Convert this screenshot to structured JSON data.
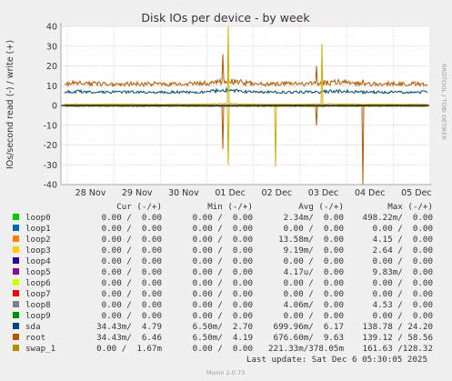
{
  "chart_data": {
    "type": "line",
    "title": "Disk IOs per device - by week",
    "ylabel": "IOs/second read (-) / write (+)",
    "side_label": "RRDTOOL / TOBI OETIKER",
    "ylim": [
      -40,
      40
    ],
    "yticks": [
      40,
      30,
      20,
      10,
      0,
      -10,
      -20,
      -30,
      -40
    ],
    "xticks": [
      "28 Nov",
      "29 Nov",
      "30 Nov",
      "01 Dec",
      "02 Dec",
      "03 Dec",
      "04 Dec",
      "05 Dec"
    ],
    "grid": true,
    "approx_series": [
      {
        "name": "root",
        "color": "#b35a00",
        "write_level_range": [
          8,
          13
        ],
        "peaks": [
          {
            "x": "01 Dec",
            "write": 26,
            "read": -22
          },
          {
            "x": "03 Dec",
            "write": 20,
            "read": -10
          },
          {
            "x": "04 Dec",
            "write": 13,
            "read": -40
          }
        ]
      },
      {
        "name": "sda",
        "color": "#00486b",
        "write_level_range": [
          5,
          8
        ]
      },
      {
        "name": "swap_1",
        "color": "#ccb000",
        "write_level_range": [
          0,
          1
        ],
        "peaks": [
          {
            "x": "01 Dec",
            "write": 40,
            "read": -30
          },
          {
            "x": "02 Dec",
            "read": -31
          },
          {
            "x": "03 Dec",
            "write": 31
          }
        ]
      }
    ]
  },
  "legend": {
    "headers": {
      "cur": "Cur (-/+)",
      "min": "Min (-/+)",
      "avg": "Avg (-/+)",
      "max": "Max (-/+)"
    },
    "rows": [
      {
        "name": "loop0",
        "color": "#00cc00",
        "cur": "0.00 /  0.00",
        "min": "0.00 /  0.00",
        "avg": "2.34m/  0.00",
        "max": "498.22m/  0.00"
      },
      {
        "name": "loop1",
        "color": "#0066b3",
        "cur": "0.00 /  0.00",
        "min": "0.00 /  0.00",
        "avg": "0.00 /  0.00",
        "max": "0.00 /  0.00"
      },
      {
        "name": "loop2",
        "color": "#ff8000",
        "cur": "0.00 /  0.00",
        "min": "0.00 /  0.00",
        "avg": "13.58m/  0.00",
        "max": "4.15 /  0.00"
      },
      {
        "name": "loop3",
        "color": "#ffcc00",
        "cur": "0.00 /  0.00",
        "min": "0.00 /  0.00",
        "avg": "9.19m/  0.00",
        "max": "2.64 /  0.00"
      },
      {
        "name": "loop4",
        "color": "#330099",
        "cur": "0.00 /  0.00",
        "min": "0.00 /  0.00",
        "avg": "0.00 /  0.00",
        "max": "0.00 /  0.00"
      },
      {
        "name": "loop5",
        "color": "#990099",
        "cur": "0.00 /  0.00",
        "min": "0.00 /  0.00",
        "avg": "4.17u/  0.00",
        "max": "9.83m/  0.00"
      },
      {
        "name": "loop6",
        "color": "#ccff00",
        "cur": "0.00 /  0.00",
        "min": "0.00 /  0.00",
        "avg": "0.00 /  0.00",
        "max": "0.00 /  0.00"
      },
      {
        "name": "loop7",
        "color": "#ff0000",
        "cur": "0.00 /  0.00",
        "min": "0.00 /  0.00",
        "avg": "0.00 /  0.00",
        "max": "0.00 /  0.00"
      },
      {
        "name": "loop8",
        "color": "#808080",
        "cur": "0.00 /  0.00",
        "min": "0.00 /  0.00",
        "avg": "4.06m/  0.00",
        "max": "4.53 /  0.00"
      },
      {
        "name": "loop9",
        "color": "#008f00",
        "cur": "0.00 /  0.00",
        "min": "0.00 /  0.00",
        "avg": "0.00 /  0.00",
        "max": "0.00 /  0.00"
      },
      {
        "name": "sda",
        "color": "#00487d",
        "cur": "34.43m/  4.79",
        "min": "6.50m/  2.70",
        "avg": "699.96m/  6.17",
        "max": "138.78 / 24.20"
      },
      {
        "name": "root",
        "color": "#b35a00",
        "cur": "34.43m/  6.46",
        "min": "6.50m/  4.19",
        "avg": "676.60m/  9.63",
        "max": "139.12 / 58.56"
      },
      {
        "name": "swap_1",
        "color": "#b38f00",
        "cur": "0.00 /  1.67m",
        "min": "0.00 /  0.00",
        "avg": "221.33m/378.05m",
        "max": "161.63 /128.32"
      }
    ],
    "last_update": "Last update: Sat Dec  6 05:30:05 2025",
    "footer": "Munin 2.0.73"
  }
}
